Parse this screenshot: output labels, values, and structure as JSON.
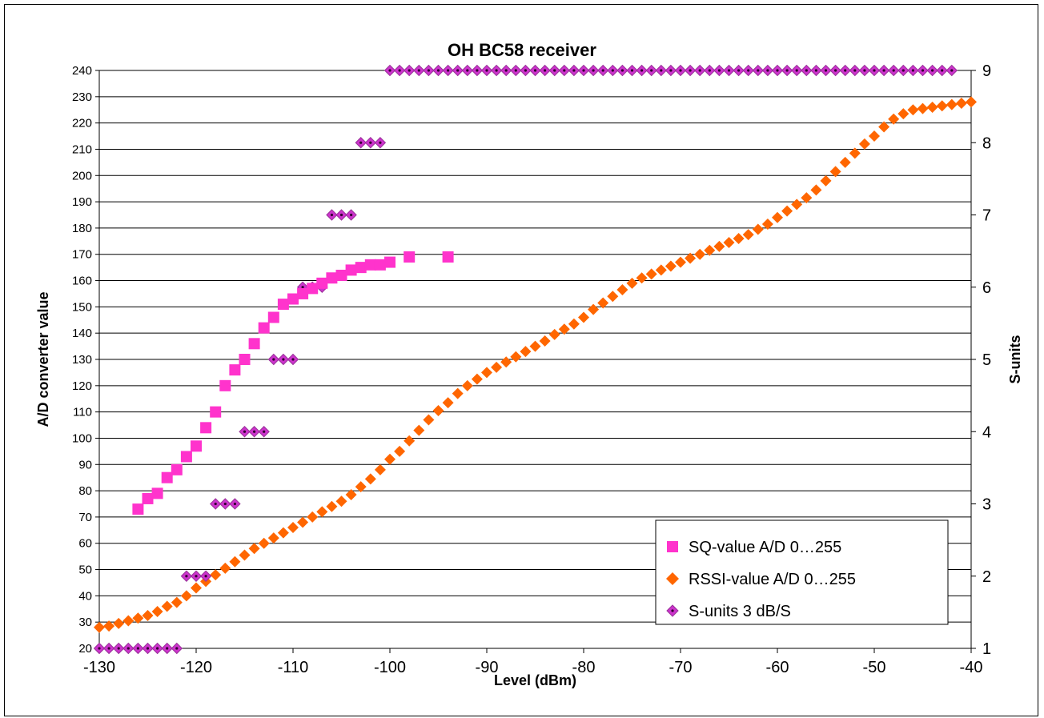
{
  "chart_data": {
    "type": "scatter",
    "title": "OH  BC58 receiver",
    "xlabel": "Level (dBm)",
    "ylabel": "A/D converter value",
    "y2label": "S-units",
    "xlim": [
      -130,
      -40
    ],
    "ylim": [
      20,
      240
    ],
    "y2lim": [
      1,
      9
    ],
    "x_ticks": [
      "-130",
      "-120",
      "-110",
      "-100",
      "-90",
      "-80",
      "-70",
      "-60",
      "-50",
      "-40"
    ],
    "y_ticks": [
      "20",
      "30",
      "40",
      "50",
      "60",
      "70",
      "80",
      "90",
      "100",
      "110",
      "120",
      "130",
      "140",
      "150",
      "160",
      "170",
      "180",
      "190",
      "200",
      "210",
      "220",
      "230",
      "240"
    ],
    "y2_ticks": [
      "1",
      "2",
      "3",
      "4",
      "5",
      "6",
      "7",
      "8",
      "9"
    ],
    "grid": "horizontal",
    "legend_position": "bottom-right",
    "series": [
      {
        "name": "SQ-value A/D 0…255",
        "axis": "left",
        "marker": "square",
        "color": "#FF33CC",
        "x": [
          -126,
          -125,
          -124,
          -123,
          -122,
          -121,
          -120,
          -119,
          -118,
          -117,
          -116,
          -115,
          -114,
          -113,
          -112,
          -111,
          -110,
          -109,
          -108,
          -107,
          -106,
          -105,
          -104,
          -103,
          -102,
          -101,
          -100,
          -98,
          -94
        ],
        "y": [
          73,
          77,
          79,
          85,
          88,
          93,
          97,
          104,
          110,
          120,
          126,
          130,
          136,
          142,
          146,
          151,
          153,
          155,
          157,
          159,
          161,
          162,
          164,
          165,
          166,
          166,
          167,
          169,
          169
        ]
      },
      {
        "name": "RSSI-value A/D 0…255",
        "axis": "left",
        "marker": "diamond",
        "color": "#FF6600",
        "x": [
          -130,
          -129,
          -128,
          -127,
          -126,
          -125,
          -124,
          -123,
          -122,
          -121,
          -120,
          -119,
          -118,
          -117,
          -116,
          -115,
          -114,
          -113,
          -112,
          -111,
          -110,
          -109,
          -108,
          -107,
          -106,
          -105,
          -104,
          -103,
          -102,
          -101,
          -100,
          -99,
          -98,
          -97,
          -96,
          -95,
          -94,
          -93,
          -92,
          -91,
          -90,
          -89,
          -88,
          -87,
          -86,
          -85,
          -84,
          -83,
          -82,
          -81,
          -80,
          -79,
          -78,
          -77,
          -76,
          -75,
          -74,
          -73,
          -72,
          -71,
          -70,
          -69,
          -68,
          -67,
          -66,
          -65,
          -64,
          -63,
          -62,
          -61,
          -60,
          -59,
          -58,
          -57,
          -56,
          -55,
          -54,
          -53,
          -52,
          -51,
          -50,
          -49,
          -48,
          -47,
          -46,
          -45,
          -44,
          -43,
          -42,
          -41,
          -40
        ],
        "y": [
          28,
          28.5,
          29.5,
          30.5,
          31.5,
          32.5,
          34,
          36,
          37.5,
          40,
          43,
          45.5,
          48,
          50.5,
          53,
          55.5,
          58,
          60,
          62,
          64,
          66,
          68,
          70,
          72,
          74,
          76,
          78.5,
          81.5,
          84.5,
          88,
          92,
          95,
          99,
          103,
          107,
          110.5,
          113.5,
          117,
          120,
          122.5,
          125,
          127,
          129,
          131,
          133,
          135,
          137,
          139.5,
          141.5,
          143.5,
          146,
          149,
          151.5,
          154,
          156.5,
          159,
          161,
          162.5,
          164,
          165.5,
          167,
          168.5,
          170,
          171.5,
          173,
          174.5,
          176,
          177.5,
          179.5,
          181.5,
          184,
          186.5,
          189,
          191.5,
          194.5,
          198,
          201.5,
          205,
          208.5,
          212,
          215,
          218.5,
          221.5,
          223.5,
          225,
          225.5,
          226,
          226.5,
          227,
          227.5,
          228
        ]
      },
      {
        "name": "S-units 3 dB/S",
        "axis": "right",
        "marker": "diamond",
        "color": "#CC33CC",
        "x": [
          -130,
          -129,
          -128,
          -127,
          -126,
          -125,
          -124,
          -123,
          -122,
          -121,
          -120,
          -119,
          -118,
          -117,
          -116,
          -115,
          -114,
          -113,
          -112,
          -111,
          -110,
          -109,
          -108,
          -107,
          -106,
          -105,
          -104,
          -103,
          -102,
          -101,
          -100,
          -99,
          -98,
          -97,
          -96,
          -95,
          -94,
          -93,
          -92,
          -91,
          -90,
          -89,
          -88,
          -87,
          -86,
          -85,
          -84,
          -83,
          -82,
          -81,
          -80,
          -79,
          -78,
          -77,
          -76,
          -75,
          -74,
          -73,
          -72,
          -71,
          -70,
          -69,
          -68,
          -67,
          -66,
          -65,
          -64,
          -63,
          -62,
          -61,
          -60,
          -59,
          -58,
          -57,
          -56,
          -55,
          -54,
          -53,
          -52,
          -51,
          -50,
          -49,
          -48,
          -47,
          -46,
          -45,
          -44,
          -43,
          -42
        ],
        "y": [
          1,
          1,
          1,
          1,
          1,
          1,
          1,
          1,
          1,
          2,
          2,
          2,
          3,
          3,
          3,
          4,
          4,
          4,
          5,
          5,
          5,
          6,
          6,
          6,
          7,
          7,
          7,
          8,
          8,
          8,
          9,
          9,
          9,
          9,
          9,
          9,
          9,
          9,
          9,
          9,
          9,
          9,
          9,
          9,
          9,
          9,
          9,
          9,
          9,
          9,
          9,
          9,
          9,
          9,
          9,
          9,
          9,
          9,
          9,
          9,
          9,
          9,
          9,
          9,
          9,
          9,
          9,
          9,
          9,
          9,
          9,
          9,
          9,
          9,
          9,
          9,
          9,
          9,
          9,
          9,
          9,
          9,
          9,
          9,
          9,
          9,
          9,
          9,
          9
        ]
      }
    ]
  }
}
